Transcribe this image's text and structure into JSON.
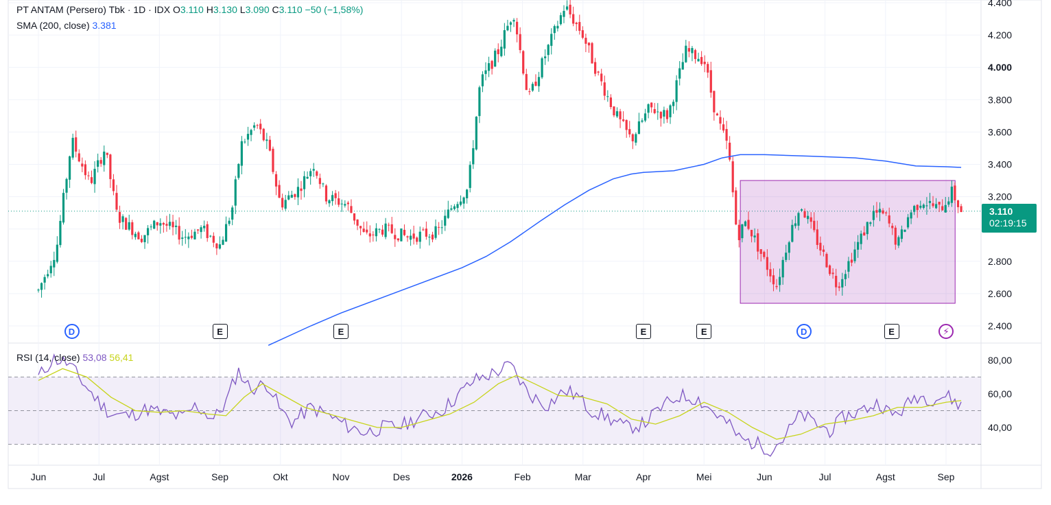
{
  "header": {
    "title": "PT ANTAM (Persero) Tbk · 1D · IDX",
    "ohlc": {
      "o_label": "O",
      "o": "3.110",
      "h_label": "H",
      "h": "3.130",
      "l_label": "L",
      "l": "3.090",
      "c_label": "C",
      "c": "3.110",
      "change": "−50 (−1,58%)"
    },
    "sma_label": "SMA (200, close)",
    "sma_value": "3.381",
    "rsi_label": "RSI (14, close)",
    "rsi_value": "53,08",
    "rsi_ma_value": "56,41"
  },
  "price_badge": {
    "price": "3.110",
    "countdown": "02:19:15"
  },
  "events": [
    {
      "type": "D",
      "month_index": 0.55,
      "name": "dividend-event-icon"
    },
    {
      "type": "E",
      "month_index": 3.0,
      "name": "earnings-event-icon"
    },
    {
      "type": "E",
      "month_index": 5.0,
      "name": "earnings-event-icon"
    },
    {
      "type": "E",
      "month_index": 10.0,
      "name": "earnings-event-icon"
    },
    {
      "type": "E",
      "month_index": 11.0,
      "name": "earnings-event-icon"
    },
    {
      "type": "D",
      "month_index": 12.65,
      "name": "dividend-event-icon"
    },
    {
      "type": "E",
      "month_index": 14.1,
      "name": "earnings-event-icon"
    },
    {
      "type": "F",
      "month_index": 15.0,
      "name": "lightning-event-icon"
    }
  ],
  "colors": {
    "up": "#089981",
    "down": "#f23645",
    "sma": "#2962ff",
    "rsi": "#7e57c2",
    "rsi_ma": "#c7d41c",
    "box": "#9c27b0",
    "rsi_band": "#7e57c2"
  },
  "chart_data": [
    {
      "type": "candlestick",
      "title": "",
      "y_ticks": [
        "2.400",
        "2.600",
        "2.800",
        "3.000",
        "3.200",
        "3.400",
        "3.600",
        "3.800",
        "4.000",
        "4.200",
        "4.400"
      ],
      "y_range": [
        2390,
        4420
      ],
      "x_ticks": [
        "Jun",
        "Jul",
        "Agst",
        "Sep",
        "Okt",
        "Nov",
        "Des",
        "2026",
        "Feb",
        "Mar",
        "Apr",
        "Mei",
        "Jun",
        "Jul",
        "Agst",
        "Sep"
      ],
      "last_price": 3110,
      "anchors": [
        [
          0.0,
          2620
        ],
        [
          0.3,
          2880
        ],
        [
          0.55,
          3550
        ],
        [
          0.85,
          3280
        ],
        [
          1.1,
          3500
        ],
        [
          1.3,
          3080
        ],
        [
          1.7,
          2950
        ],
        [
          2.0,
          3050
        ],
        [
          2.4,
          2950
        ],
        [
          2.7,
          3000
        ],
        [
          3.0,
          2900
        ],
        [
          3.2,
          3120
        ],
        [
          3.35,
          3520
        ],
        [
          3.6,
          3650
        ],
        [
          3.8,
          3500
        ],
        [
          4.0,
          3150
        ],
        [
          4.3,
          3250
        ],
        [
          4.55,
          3400
        ],
        [
          4.75,
          3200
        ],
        [
          5.1,
          3150
        ],
        [
          5.4,
          2950
        ],
        [
          5.7,
          3000
        ],
        [
          6.1,
          2950
        ],
        [
          6.6,
          2980
        ],
        [
          6.85,
          3150
        ],
        [
          7.1,
          3250
        ],
        [
          7.3,
          3900
        ],
        [
          7.6,
          4100
        ],
        [
          7.85,
          4350
        ],
        [
          8.1,
          3800
        ],
        [
          8.4,
          4100
        ],
        [
          8.7,
          4380
        ],
        [
          9.0,
          4200
        ],
        [
          9.25,
          3950
        ],
        [
          9.55,
          3700
        ],
        [
          9.8,
          3550
        ],
        [
          10.1,
          3750
        ],
        [
          10.4,
          3700
        ],
        [
          10.7,
          4100
        ],
        [
          11.0,
          4050
        ],
        [
          11.2,
          3700
        ],
        [
          11.4,
          3500
        ],
        [
          11.55,
          2950
        ],
        [
          11.7,
          3050
        ],
        [
          12.0,
          2800
        ],
        [
          12.2,
          2650
        ],
        [
          12.4,
          2950
        ],
        [
          12.6,
          3150
        ],
        [
          12.9,
          2900
        ],
        [
          13.2,
          2650
        ],
        [
          13.4,
          2800
        ],
        [
          13.6,
          2950
        ],
        [
          13.8,
          3100
        ],
        [
          14.0,
          3080
        ],
        [
          14.2,
          2900
        ],
        [
          14.4,
          3100
        ],
        [
          14.6,
          3180
        ],
        [
          14.9,
          3120
        ],
        [
          15.1,
          3230
        ],
        [
          15.25,
          3110
        ]
      ],
      "sma_200": [
        [
          3.8,
          2280
        ],
        [
          4.5,
          2400
        ],
        [
          5.0,
          2480
        ],
        [
          6.0,
          2620
        ],
        [
          7.0,
          2760
        ],
        [
          7.4,
          2830
        ],
        [
          7.8,
          2920
        ],
        [
          8.3,
          3050
        ],
        [
          8.7,
          3150
        ],
        [
          9.1,
          3240
        ],
        [
          9.5,
          3310
        ],
        [
          9.8,
          3340
        ],
        [
          10.0,
          3350
        ],
        [
          10.5,
          3360
        ],
        [
          11.0,
          3400
        ],
        [
          11.3,
          3440
        ],
        [
          11.6,
          3460
        ],
        [
          12.0,
          3460
        ],
        [
          12.8,
          3450
        ],
        [
          13.5,
          3440
        ],
        [
          14.0,
          3420
        ],
        [
          14.5,
          3390
        ],
        [
          15.0,
          3385
        ],
        [
          15.25,
          3381
        ]
      ],
      "rectangle": {
        "x_from": 11.6,
        "x_to": 15.15,
        "y_top": 3300,
        "y_bottom": 2540
      }
    },
    {
      "type": "line",
      "title": "",
      "y_ticks": [
        "40,00",
        "60,00",
        "80,00"
      ],
      "y_range": [
        24,
        85
      ],
      "band": [
        30,
        70
      ],
      "midline": 50,
      "rsi": [
        [
          0.0,
          70
        ],
        [
          0.25,
          81
        ],
        [
          0.5,
          78
        ],
        [
          0.75,
          66
        ],
        [
          1.0,
          55
        ],
        [
          1.2,
          48
        ],
        [
          1.5,
          47
        ],
        [
          1.8,
          51
        ],
        [
          2.1,
          48
        ],
        [
          2.4,
          46
        ],
        [
          2.6,
          53
        ],
        [
          2.9,
          45
        ],
        [
          3.1,
          55
        ],
        [
          3.3,
          74
        ],
        [
          3.5,
          63
        ],
        [
          3.8,
          66
        ],
        [
          4.0,
          50
        ],
        [
          4.2,
          43
        ],
        [
          4.5,
          52
        ],
        [
          4.8,
          47
        ],
        [
          5.1,
          41
        ],
        [
          5.4,
          37
        ],
        [
          5.7,
          40
        ],
        [
          6.0,
          41
        ],
        [
          6.3,
          46
        ],
        [
          6.7,
          51
        ],
        [
          6.9,
          58
        ],
        [
          7.2,
          68
        ],
        [
          7.5,
          72
        ],
        [
          7.8,
          77
        ],
        [
          8.1,
          60
        ],
        [
          8.4,
          53
        ],
        [
          8.7,
          62
        ],
        [
          8.9,
          59
        ],
        [
          9.1,
          51
        ],
        [
          9.4,
          46
        ],
        [
          9.7,
          40
        ],
        [
          10.0,
          42
        ],
        [
          10.3,
          52
        ],
        [
          10.6,
          59
        ],
        [
          10.9,
          57
        ],
        [
          11.2,
          48
        ],
        [
          11.4,
          42
        ],
        [
          11.6,
          33
        ],
        [
          11.9,
          30
        ],
        [
          12.1,
          27
        ],
        [
          12.3,
          33
        ],
        [
          12.6,
          48
        ],
        [
          12.9,
          41
        ],
        [
          13.1,
          38
        ],
        [
          13.3,
          46
        ],
        [
          13.6,
          50
        ],
        [
          13.9,
          55
        ],
        [
          14.1,
          47
        ],
        [
          14.3,
          51
        ],
        [
          14.5,
          59
        ],
        [
          14.8,
          57
        ],
        [
          15.0,
          59
        ],
        [
          15.25,
          53
        ]
      ],
      "rsi_ma": [
        [
          0.0,
          68
        ],
        [
          0.4,
          75
        ],
        [
          0.8,
          70
        ],
        [
          1.2,
          58
        ],
        [
          1.6,
          50
        ],
        [
          2.0,
          49
        ],
        [
          2.4,
          50
        ],
        [
          2.8,
          48
        ],
        [
          3.1,
          47
        ],
        [
          3.4,
          58
        ],
        [
          3.7,
          66
        ],
        [
          4.0,
          60
        ],
        [
          4.4,
          52
        ],
        [
          4.8,
          48
        ],
        [
          5.2,
          44
        ],
        [
          5.6,
          40
        ],
        [
          6.0,
          40
        ],
        [
          6.4,
          44
        ],
        [
          6.8,
          48
        ],
        [
          7.2,
          55
        ],
        [
          7.6,
          66
        ],
        [
          7.9,
          71
        ],
        [
          8.2,
          66
        ],
        [
          8.6,
          59
        ],
        [
          9.0,
          58
        ],
        [
          9.4,
          54
        ],
        [
          9.8,
          45
        ],
        [
          10.2,
          42
        ],
        [
          10.6,
          47
        ],
        [
          11.0,
          55
        ],
        [
          11.4,
          49
        ],
        [
          11.8,
          40
        ],
        [
          12.2,
          33
        ],
        [
          12.6,
          36
        ],
        [
          13.0,
          42
        ],
        [
          13.4,
          44
        ],
        [
          13.8,
          47
        ],
        [
          14.2,
          52
        ],
        [
          14.6,
          52
        ],
        [
          15.0,
          55
        ],
        [
          15.25,
          56
        ]
      ]
    }
  ]
}
